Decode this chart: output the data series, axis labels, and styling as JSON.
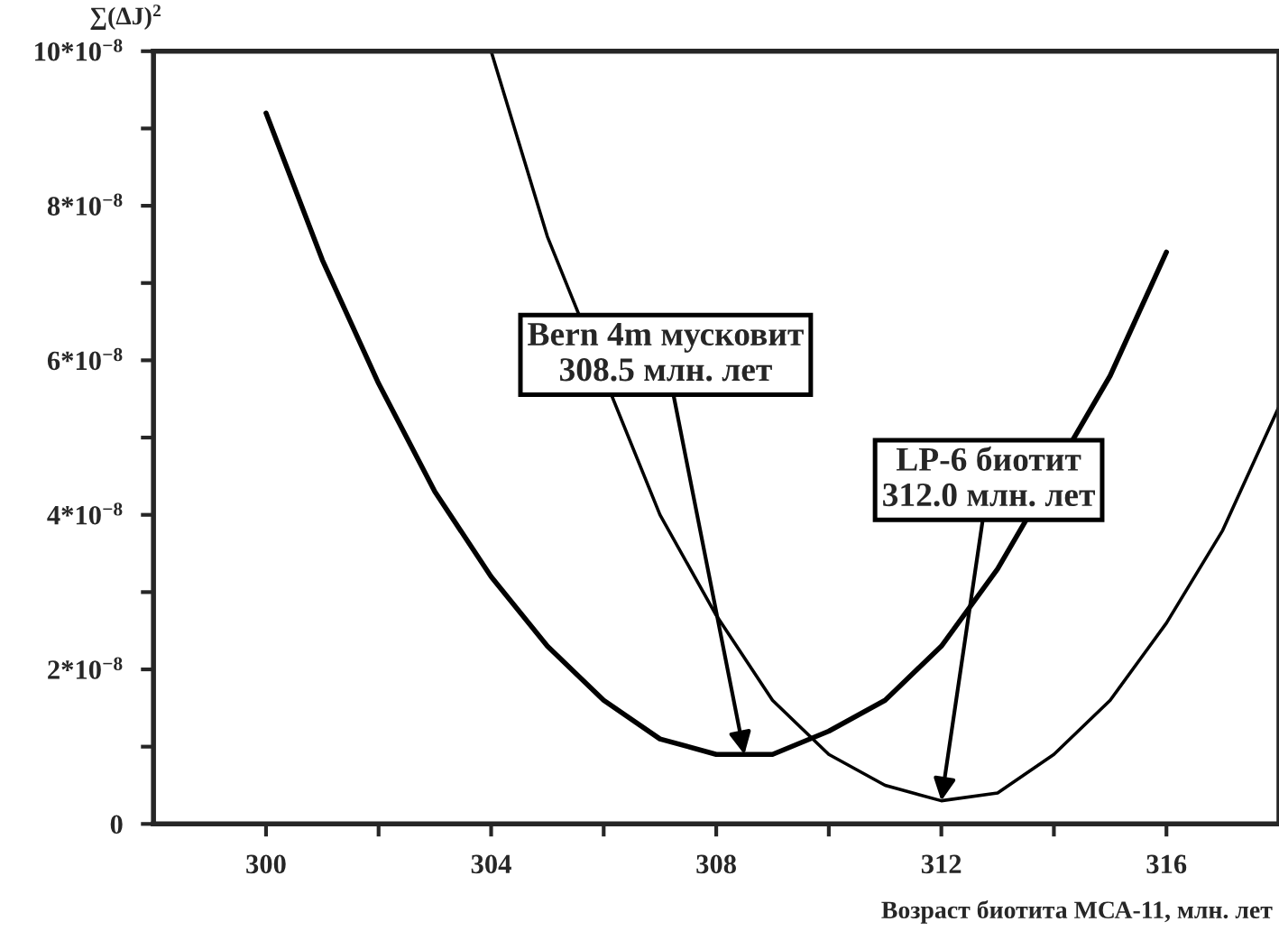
{
  "chart_data": {
    "type": "line",
    "xlabel": "Возраст биотита МСА-11, млн. лет",
    "ylabel": "∑(ΔJ)$^{2}$",
    "xlim": [
      298,
      318
    ],
    "ylim": [
      0,
      1e-07
    ],
    "xticks": [
      300,
      {
        "value": 302,
        "label": null
      },
      304,
      {
        "value": 306,
        "label": null
      },
      308,
      {
        "value": 310,
        "label": null
      },
      312,
      {
        "value": 314,
        "label": null
      },
      316
    ],
    "yticks": [
      {
        "value": 0,
        "label": "0"
      },
      {
        "value": 1e-08,
        "label": null
      },
      {
        "value": 2e-08,
        "label": "2*10$^{−8}$"
      },
      {
        "value": 3e-08,
        "label": null
      },
      {
        "value": 4e-08,
        "label": "4*10$^{−8}$"
      },
      {
        "value": 5e-08,
        "label": null
      },
      {
        "value": 6e-08,
        "label": "6*10$^{−8}$"
      },
      {
        "value": 7e-08,
        "label": null
      },
      {
        "value": 8e-08,
        "label": "8*10$^{−8}$"
      },
      {
        "value": 9e-08,
        "label": null
      },
      {
        "value": 1e-07,
        "label": "10*10$^{−8}$"
      }
    ],
    "grid": false,
    "legend": false,
    "marker": "none",
    "line_style": "solid",
    "series": [
      {
        "color": "#000000",
        "x": [
          300,
          301,
          302,
          303,
          304,
          305,
          306,
          307,
          308,
          308.5,
          309,
          310,
          311,
          312,
          313,
          314,
          315,
          316
        ],
        "values": [
          9.2e-08,
          7.3e-08,
          5.7e-08,
          4.3e-08,
          3.2e-08,
          2.3e-08,
          1.6e-08,
          1.1e-08,
          9e-09,
          9e-09,
          9e-09,
          1.2e-08,
          1.6e-08,
          2.3e-08,
          3.3e-08,
          null,
          5.8e-08,
          7.4e-08
        ]
      },
      {
        "color": "#000000",
        "x": [
          304,
          305,
          306,
          307,
          308,
          309,
          310,
          311,
          312,
          313,
          314,
          315,
          316,
          317,
          318
        ],
        "values": [
          1e-07,
          7.6e-08,
          null,
          4e-08,
          2.7e-08,
          1.6e-08,
          9e-09,
          5e-09,
          3e-09,
          4e-09,
          9e-09,
          1.6e-08,
          2.6e-08,
          3.8e-08,
          5.4e-08
        ]
      }
    ],
    "annotations": [
      {
        "text": "Bern 4m мусковит\n308.5 млн. лет",
        "x": 308.5,
        "y": 9e-09
      },
      {
        "text": "LP-6 биотит\n312.0 млн. лет",
        "x": 312.0,
        "y": 3e-09
      }
    ]
  }
}
